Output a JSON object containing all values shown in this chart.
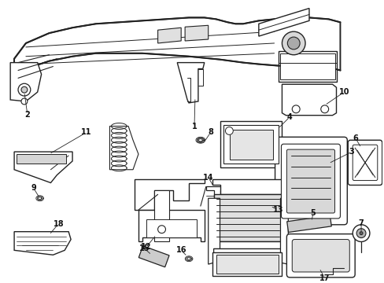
{
  "background_color": "#ffffff",
  "line_color": "#222222",
  "label_color": "#111111",
  "figsize": [
    4.89,
    3.6
  ],
  "dpi": 100,
  "label_fs": 7.0
}
